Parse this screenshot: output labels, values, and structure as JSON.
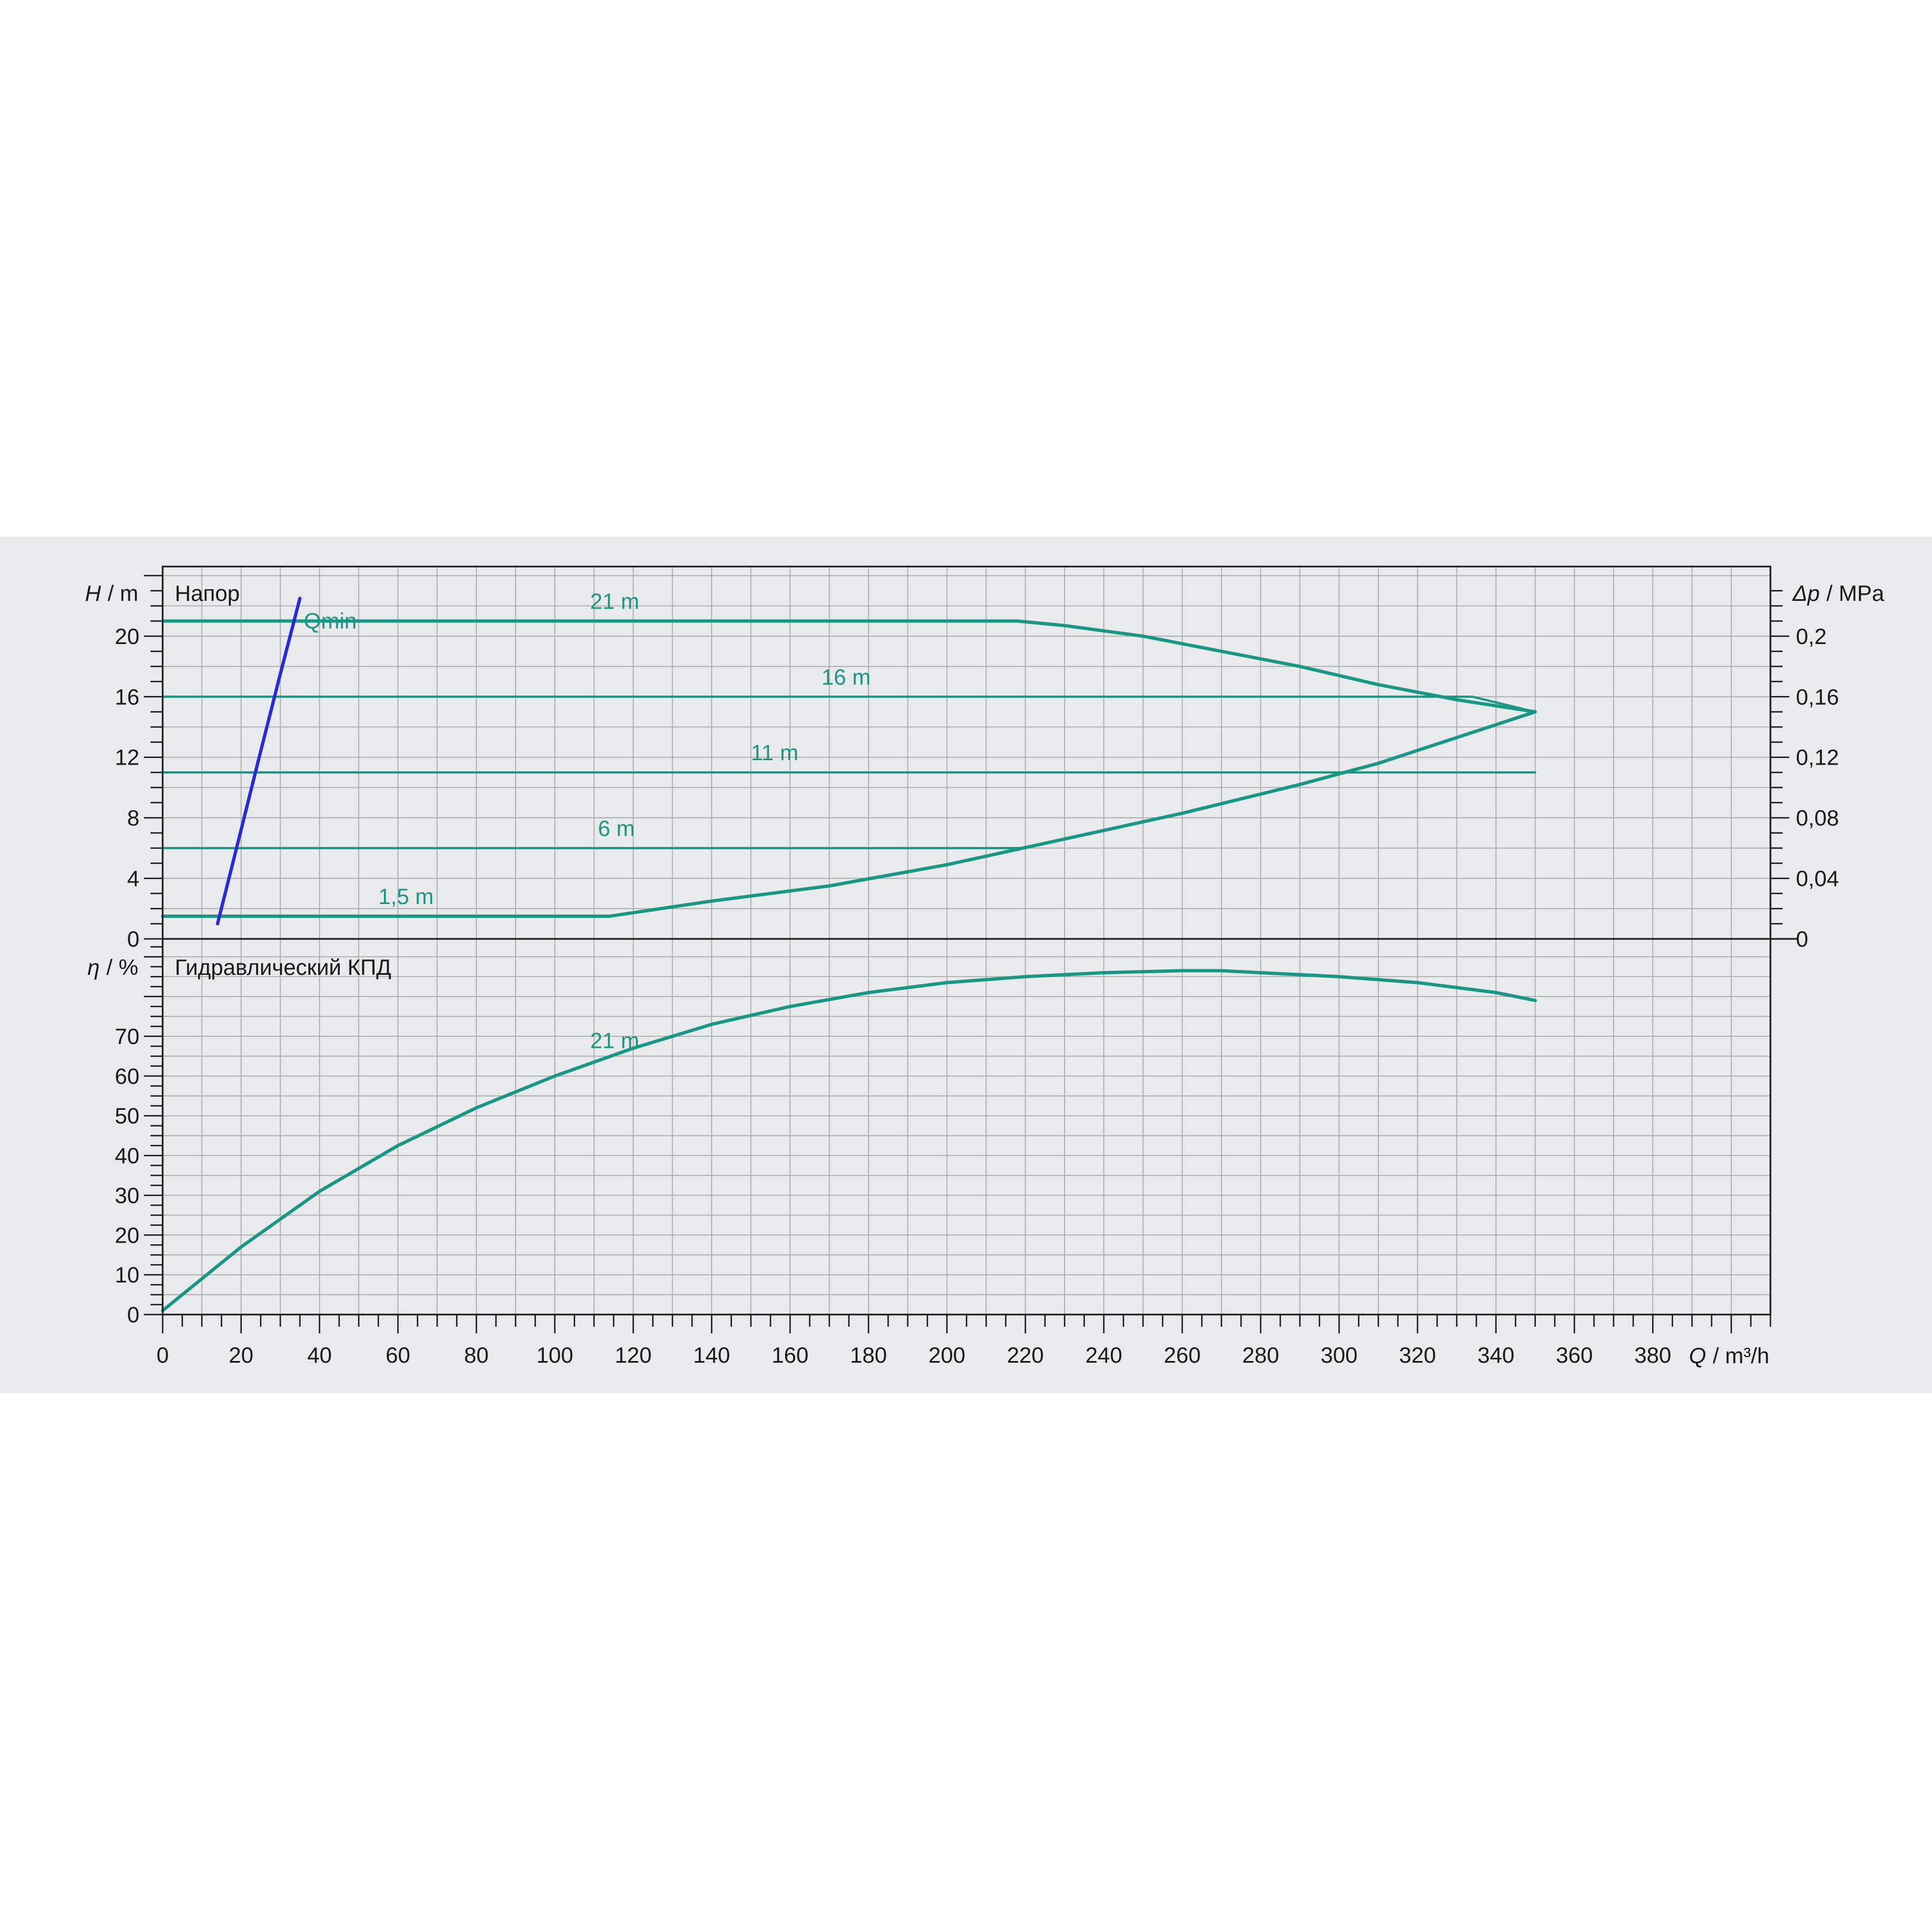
{
  "colors": {
    "background": "#ffffff",
    "panel": "#e9eaec",
    "plot_bg": "#e9eaec",
    "grid": "#a8a8a8",
    "axis": "#1a1a1a",
    "curve": "#1a9685",
    "qmin": "#2a2ad6"
  },
  "chart_data": [
    {
      "type": "line",
      "title": "Напор",
      "y_axis_label": {
        "symbol": "H",
        "unit": "/ m"
      },
      "y2_axis_label": {
        "symbol": "Δp",
        "unit": "/ MPa"
      },
      "x_axis_label": {
        "symbol": "Q",
        "unit": "/ m³/h"
      },
      "xlim": [
        0,
        410
      ],
      "ylim": [
        0,
        24.6
      ],
      "y2lim": [
        0,
        0.246
      ],
      "x_ticks": [
        "0",
        "20",
        "40",
        "60",
        "80",
        "100",
        "120",
        "140",
        "160",
        "180",
        "200",
        "220",
        "240",
        "260",
        "280",
        "300",
        "320",
        "340",
        "360",
        "380"
      ],
      "x_tick_values": [
        0,
        20,
        40,
        60,
        80,
        100,
        120,
        140,
        160,
        180,
        200,
        220,
        240,
        260,
        280,
        300,
        320,
        340,
        360,
        380
      ],
      "y_ticks": [
        "0",
        "4",
        "8",
        "12",
        "16",
        "20"
      ],
      "y_tick_values": [
        0,
        4,
        8,
        12,
        16,
        20
      ],
      "y2_ticks": [
        "0",
        "0,04",
        "0,08",
        "0,12",
        "0,16",
        "0,2"
      ],
      "y2_tick_values": [
        0,
        0.04,
        0.08,
        0.12,
        0.16,
        0.2
      ],
      "grid": true,
      "series": [
        {
          "name": "21 m",
          "x": [
            0,
            100,
            200,
            218,
            230,
            250,
            270,
            290,
            310,
            330,
            350
          ],
          "y": [
            21,
            21,
            21,
            21,
            20.7,
            20,
            19,
            18,
            16.8,
            15.8,
            15
          ]
        },
        {
          "name": "16 m",
          "x": [
            0,
            100,
            200,
            300,
            334,
            350
          ],
          "y": [
            16,
            16,
            16,
            16,
            16,
            15
          ]
        },
        {
          "name": "11 m",
          "x": [
            0,
            100,
            200,
            300,
            350
          ],
          "y": [
            11,
            11,
            11,
            11,
            11
          ]
        },
        {
          "name": "6 m",
          "x": [
            0,
            100,
            200,
            219
          ],
          "y": [
            6,
            6,
            6,
            6
          ]
        },
        {
          "name": "1,5 m",
          "x": [
            0,
            50,
            100,
            114,
            140,
            170,
            200,
            230,
            260,
            290,
            310,
            330,
            350
          ],
          "y": [
            1.5,
            1.5,
            1.5,
            1.5,
            2.5,
            3.5,
            4.9,
            6.6,
            8.3,
            10.2,
            11.6,
            13.3,
            15
          ]
        },
        {
          "name": "Qmin",
          "x": [
            14,
            20,
            25,
            30,
            35
          ],
          "y": [
            1,
            7.2,
            12.4,
            17.5,
            22.5
          ]
        }
      ],
      "labels": [
        {
          "text": "21 m",
          "x": 109,
          "y": 21.8
        },
        {
          "text": "Qmin",
          "x": 36,
          "y": 20.5
        },
        {
          "text": "16 m",
          "x": 168,
          "y": 16.8
        },
        {
          "text": "11 m",
          "x": 150,
          "y": 11.8
        },
        {
          "text": "6 m",
          "x": 111,
          "y": 6.8
        },
        {
          "text": "1,5 m",
          "x": 55,
          "y": 2.3
        }
      ]
    },
    {
      "type": "line",
      "title": "Гидравлический КПД",
      "y_axis_label": {
        "symbol": "η",
        "unit": "/ %"
      },
      "x_axis_label": {
        "symbol": "Q",
        "unit": "/ m³/h"
      },
      "xlim": [
        0,
        410
      ],
      "ylim": [
        0,
        94.5
      ],
      "y_ticks": [
        "0",
        "10",
        "20",
        "30",
        "40",
        "50",
        "60",
        "70"
      ],
      "y_tick_values": [
        0,
        10,
        20,
        30,
        40,
        50,
        60,
        70
      ],
      "grid": true,
      "series": [
        {
          "name": "21 m",
          "x": [
            0,
            20,
            40,
            60,
            80,
            100,
            120,
            140,
            160,
            180,
            200,
            220,
            240,
            260,
            270,
            280,
            300,
            320,
            340,
            350
          ],
          "y": [
            1,
            17,
            31,
            42.5,
            52,
            60,
            67,
            73,
            77.5,
            81,
            83.5,
            85,
            86,
            86.5,
            86.5,
            86,
            85,
            83.5,
            81,
            79
          ]
        }
      ],
      "labels": [
        {
          "text": "21 m",
          "x": 109,
          "y": 67
        }
      ]
    }
  ]
}
